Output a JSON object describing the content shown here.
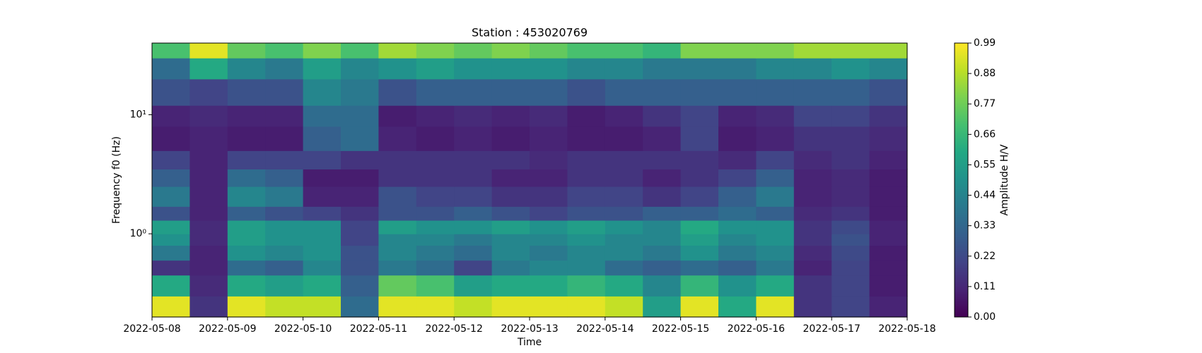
{
  "chart_data": {
    "type": "heatmap",
    "title": "Station : 453020769",
    "x_label": "Time",
    "y_label": "Frequency f0 (Hz)",
    "xlim": [
      "2022-05-08",
      "2022-05-18"
    ],
    "xticks": [
      "2022-05-08",
      "2022-05-09",
      "2022-05-10",
      "2022-05-11",
      "2022-05-12",
      "2022-05-13",
      "2022-05-14",
      "2022-05-15",
      "2022-05-16",
      "2022-05-17",
      "2022-05-18"
    ],
    "ylim": [
      0.2,
      40
    ],
    "y_scale": "log",
    "yticks": [
      {
        "value": 1,
        "label": "10⁰"
      },
      {
        "value": 10,
        "label": "10¹"
      }
    ],
    "y": [
      0.2,
      0.3,
      0.45,
      0.6,
      0.8,
      1.0,
      1.3,
      1.7,
      2.5,
      3.5,
      5,
      8,
      12,
      20,
      30,
      40
    ],
    "z": [
      [
        0.95,
        0.15,
        0.95,
        0.9,
        0.9,
        0.35,
        0.95,
        0.95,
        0.9,
        0.95,
        0.95,
        0.95,
        0.9,
        0.55,
        0.95,
        0.6,
        0.95,
        0.15,
        0.2,
        0.1
      ],
      [
        0.6,
        0.12,
        0.6,
        0.55,
        0.6,
        0.3,
        0.75,
        0.7,
        0.55,
        0.6,
        0.6,
        0.65,
        0.6,
        0.45,
        0.65,
        0.5,
        0.6,
        0.15,
        0.2,
        0.08
      ],
      [
        0.15,
        0.1,
        0.35,
        0.3,
        0.45,
        0.25,
        0.4,
        0.35,
        0.2,
        0.4,
        0.45,
        0.45,
        0.35,
        0.3,
        0.35,
        0.3,
        0.4,
        0.1,
        0.2,
        0.08
      ],
      [
        0.4,
        0.1,
        0.5,
        0.45,
        0.5,
        0.25,
        0.45,
        0.4,
        0.35,
        0.45,
        0.4,
        0.45,
        0.45,
        0.4,
        0.5,
        0.4,
        0.45,
        0.12,
        0.22,
        0.08
      ],
      [
        0.5,
        0.12,
        0.55,
        0.5,
        0.5,
        0.2,
        0.45,
        0.45,
        0.4,
        0.45,
        0.45,
        0.5,
        0.45,
        0.45,
        0.55,
        0.45,
        0.5,
        0.15,
        0.25,
        0.1
      ],
      [
        0.55,
        0.12,
        0.55,
        0.5,
        0.5,
        0.2,
        0.55,
        0.5,
        0.5,
        0.55,
        0.5,
        0.55,
        0.5,
        0.45,
        0.6,
        0.5,
        0.5,
        0.15,
        0.22,
        0.1
      ],
      [
        0.25,
        0.1,
        0.3,
        0.25,
        0.2,
        0.15,
        0.25,
        0.25,
        0.3,
        0.25,
        0.2,
        0.25,
        0.25,
        0.3,
        0.3,
        0.35,
        0.3,
        0.12,
        0.15,
        0.08
      ],
      [
        0.4,
        0.1,
        0.45,
        0.4,
        0.1,
        0.1,
        0.25,
        0.2,
        0.2,
        0.15,
        0.15,
        0.2,
        0.2,
        0.15,
        0.2,
        0.3,
        0.4,
        0.1,
        0.12,
        0.08
      ],
      [
        0.3,
        0.1,
        0.35,
        0.3,
        0.08,
        0.08,
        0.15,
        0.15,
        0.15,
        0.1,
        0.1,
        0.15,
        0.15,
        0.1,
        0.15,
        0.2,
        0.3,
        0.1,
        0.12,
        0.08
      ],
      [
        0.2,
        0.1,
        0.2,
        0.2,
        0.2,
        0.15,
        0.15,
        0.15,
        0.15,
        0.15,
        0.12,
        0.15,
        0.15,
        0.15,
        0.15,
        0.12,
        0.2,
        0.12,
        0.15,
        0.1
      ],
      [
        0.08,
        0.1,
        0.08,
        0.08,
        0.3,
        0.35,
        0.1,
        0.08,
        0.1,
        0.08,
        0.1,
        0.08,
        0.08,
        0.1,
        0.2,
        0.08,
        0.1,
        0.15,
        0.15,
        0.12
      ],
      [
        0.1,
        0.12,
        0.1,
        0.1,
        0.35,
        0.35,
        0.08,
        0.1,
        0.12,
        0.1,
        0.12,
        0.08,
        0.1,
        0.15,
        0.2,
        0.1,
        0.12,
        0.2,
        0.2,
        0.15
      ],
      [
        0.25,
        0.2,
        0.25,
        0.25,
        0.45,
        0.4,
        0.25,
        0.3,
        0.3,
        0.3,
        0.3,
        0.25,
        0.3,
        0.3,
        0.3,
        0.3,
        0.3,
        0.3,
        0.3,
        0.25
      ],
      [
        0.35,
        0.6,
        0.45,
        0.4,
        0.55,
        0.45,
        0.5,
        0.55,
        0.5,
        0.5,
        0.5,
        0.45,
        0.45,
        0.4,
        0.4,
        0.4,
        0.45,
        0.45,
        0.5,
        0.45
      ],
      [
        0.7,
        0.95,
        0.75,
        0.7,
        0.8,
        0.7,
        0.85,
        0.8,
        0.75,
        0.8,
        0.75,
        0.7,
        0.7,
        0.65,
        0.8,
        0.8,
        0.8,
        0.85,
        0.85,
        0.85
      ]
    ],
    "colormap": "viridis",
    "clim": [
      0,
      0.99
    ],
    "colorbar_label": "Amplitude H/V",
    "colorbar_ticks": [
      {
        "value": 0,
        "label": "0.00"
      },
      0.11,
      0.22,
      0.33,
      0.44,
      0.55,
      0.66,
      0.77,
      0.88,
      0.99
    ]
  }
}
